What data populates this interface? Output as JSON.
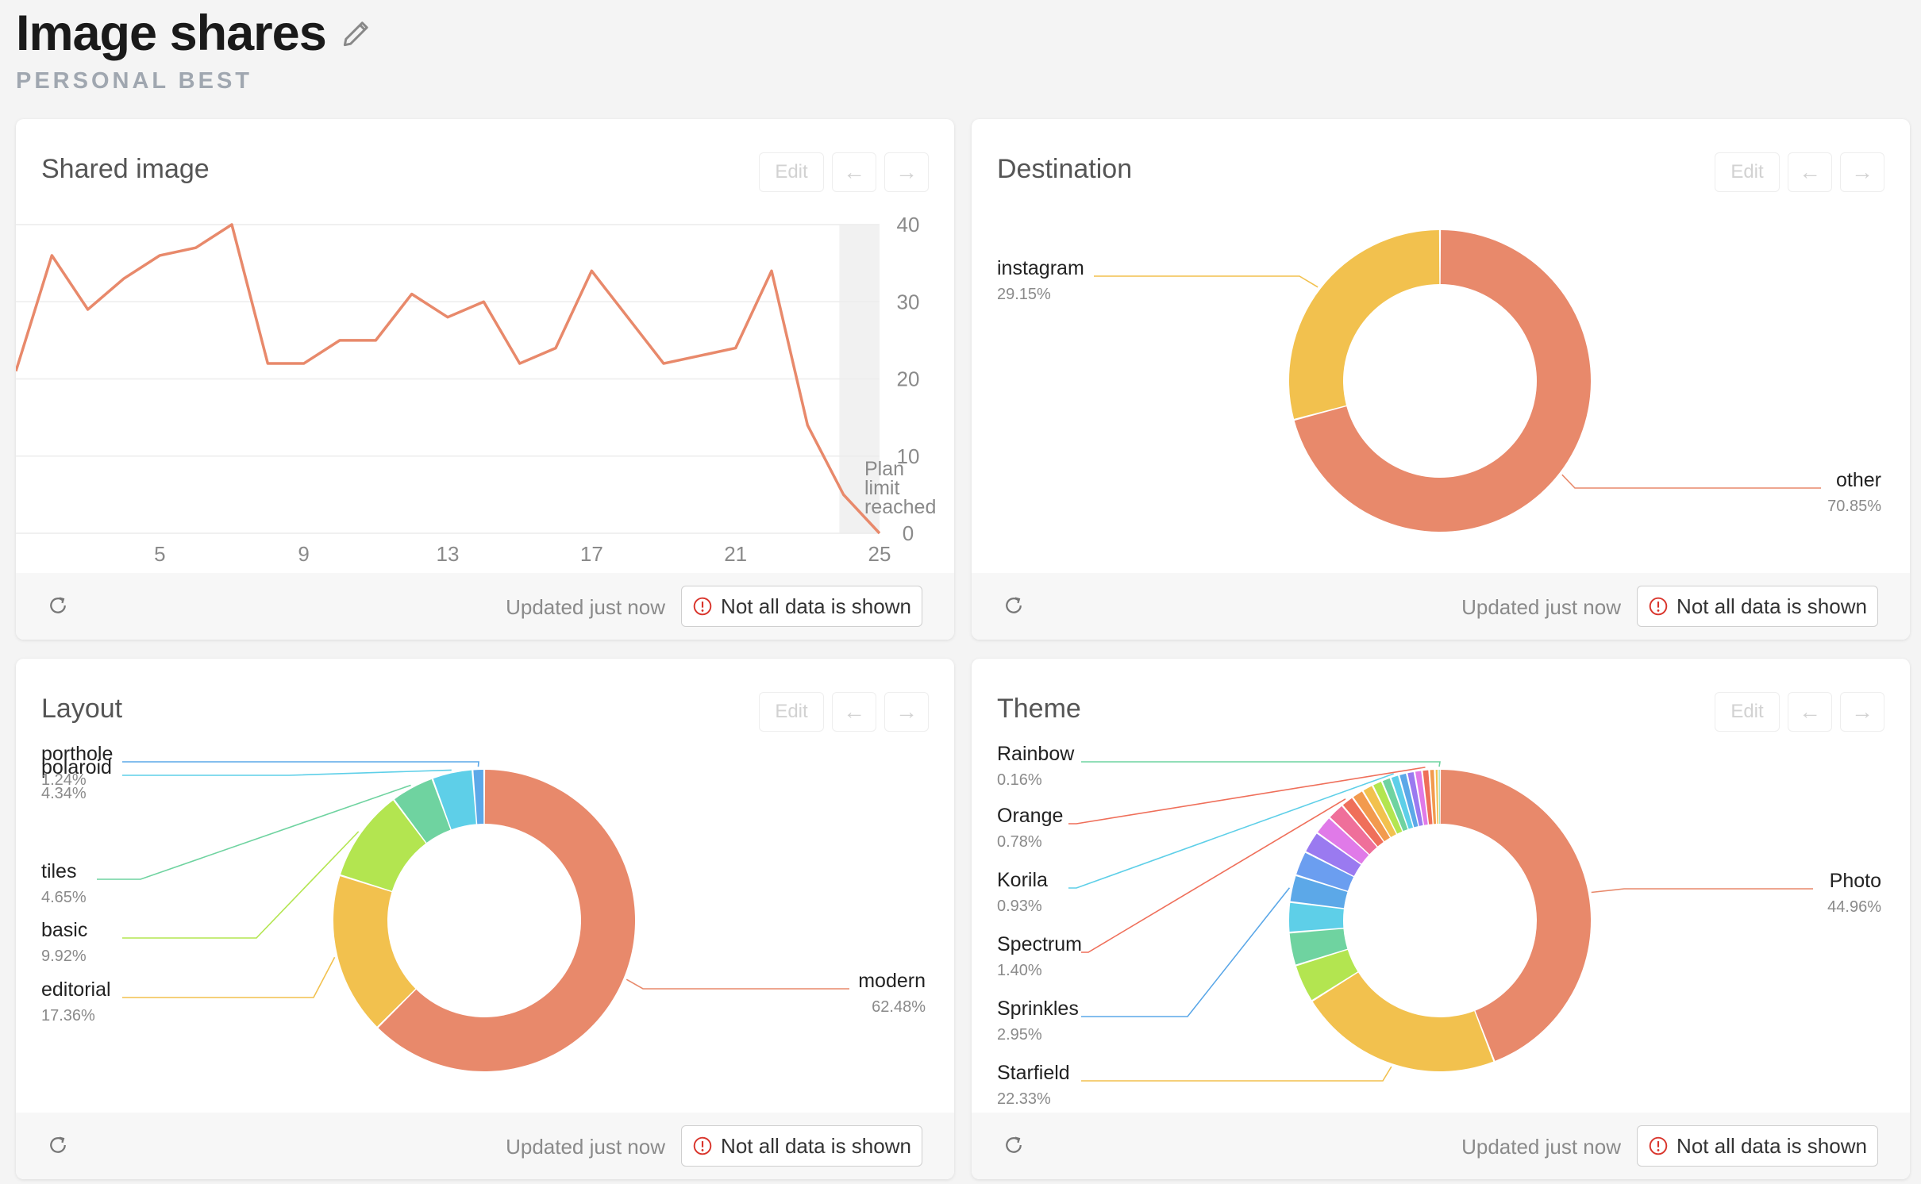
{
  "page": {
    "title": "Image shares",
    "subtitle": "PERSONAL BEST"
  },
  "toolbar": {
    "edit_label": "Edit",
    "prev_label": "←",
    "next_label": "→"
  },
  "footer": {
    "updated_label": "Updated just now",
    "warning_label": "Not all data is shown"
  },
  "cards": {
    "shared": {
      "title": "Shared image"
    },
    "destination": {
      "title": "Destination"
    },
    "layout": {
      "title": "Layout"
    },
    "theme": {
      "title": "Theme"
    }
  },
  "colors": {
    "accent": "#e8896b",
    "yellow": "#f2c14e",
    "green": "#b3e550",
    "teal": "#6fd3a0",
    "cyan": "#5ecfe8",
    "blue": "#5ca8e8"
  },
  "chart_data": [
    {
      "id": "shared-image",
      "type": "line",
      "x": [
        1,
        2,
        3,
        4,
        5,
        6,
        7,
        8,
        9,
        10,
        11,
        12,
        13,
        14,
        15,
        16,
        17,
        18,
        19,
        20,
        21,
        22,
        23,
        24,
        25
      ],
      "values": [
        21,
        36,
        29,
        33,
        36,
        37,
        40,
        22,
        22,
        25,
        25,
        31,
        28,
        30,
        22,
        24,
        34,
        28,
        22,
        23,
        24,
        34,
        14,
        5,
        0
      ],
      "xticks": [
        "5",
        "9",
        "13",
        "17",
        "21",
        "25"
      ],
      "xtick_values": [
        5,
        9,
        13,
        17,
        21,
        25
      ],
      "yticks": [
        "0",
        "10",
        "20",
        "30",
        "40"
      ],
      "ylim": [
        0,
        40
      ],
      "annotation": "Plan limit reached",
      "annotation_x": [
        24.5,
        25
      ],
      "color": "#e8896b"
    },
    {
      "id": "destination",
      "type": "pie",
      "slices": [
        {
          "label": "other",
          "pct": "70.85%",
          "value": 70.85,
          "color": "#e8896b"
        },
        {
          "label": "instagram",
          "pct": "29.15%",
          "value": 29.15,
          "color": "#f2c14e"
        }
      ]
    },
    {
      "id": "layout",
      "type": "pie",
      "slices": [
        {
          "label": "modern",
          "pct": "62.48%",
          "value": 62.48,
          "color": "#e8896b"
        },
        {
          "label": "editorial",
          "pct": "17.36%",
          "value": 17.36,
          "color": "#f2c14e"
        },
        {
          "label": "basic",
          "pct": "9.92%",
          "value": 9.92,
          "color": "#b3e550"
        },
        {
          "label": "tiles",
          "pct": "4.65%",
          "value": 4.65,
          "color": "#6fd3a0"
        },
        {
          "label": "polaroid",
          "pct": "4.34%",
          "value": 4.34,
          "color": "#5ecfe8"
        },
        {
          "label": "porthole",
          "pct": "1.24%",
          "value": 1.24,
          "color": "#5ca8e8"
        }
      ]
    },
    {
      "id": "theme",
      "type": "pie",
      "slices": [
        {
          "label": "Photo",
          "pct": "44.96%",
          "value": 44.96,
          "color": "#e8896b"
        },
        {
          "label": "Starfield",
          "pct": "22.33%",
          "value": 22.33,
          "color": "#f2c14e"
        },
        {
          "label": "",
          "value": 4.2,
          "color": "#b3e550"
        },
        {
          "label": "",
          "value": 3.6,
          "color": "#6fd3a0"
        },
        {
          "label": "",
          "value": 3.3,
          "color": "#5ecfe8"
        },
        {
          "label": "Sprinkles",
          "pct": "2.95%",
          "value": 2.95,
          "color": "#5ca8e8"
        },
        {
          "label": "",
          "value": 2.7,
          "color": "#6b9ef0"
        },
        {
          "label": "",
          "value": 2.4,
          "color": "#9a7af0"
        },
        {
          "label": "",
          "value": 2.1,
          "color": "#e07ae8"
        },
        {
          "label": "",
          "value": 1.9,
          "color": "#ef6f9a"
        },
        {
          "label": "Spectrum",
          "pct": "1.40%",
          "value": 1.4,
          "color": "#ef6f5a"
        },
        {
          "label": "",
          "value": 1.3,
          "color": "#f29a4e"
        },
        {
          "label": "",
          "value": 1.2,
          "color": "#f2c14e"
        },
        {
          "label": "",
          "value": 1.1,
          "color": "#b3e550"
        },
        {
          "label": "",
          "value": 1.0,
          "color": "#6fd3a0"
        },
        {
          "label": "Korila",
          "pct": "0.93%",
          "value": 0.93,
          "color": "#5ecfe8"
        },
        {
          "label": "",
          "value": 0.88,
          "color": "#5ca8e8"
        },
        {
          "label": "",
          "value": 0.84,
          "color": "#9a7af0"
        },
        {
          "label": "",
          "value": 0.82,
          "color": "#e07ae8"
        },
        {
          "label": "Orange",
          "pct": "0.78%",
          "value": 0.78,
          "color": "#ef6f5a"
        },
        {
          "label": "",
          "value": 0.6,
          "color": "#f29a4e"
        },
        {
          "label": "",
          "value": 0.4,
          "color": "#f2c14e"
        },
        {
          "label": "Rainbow",
          "pct": "0.16%",
          "value": 0.16,
          "color": "#6fd3a0"
        }
      ]
    }
  ]
}
